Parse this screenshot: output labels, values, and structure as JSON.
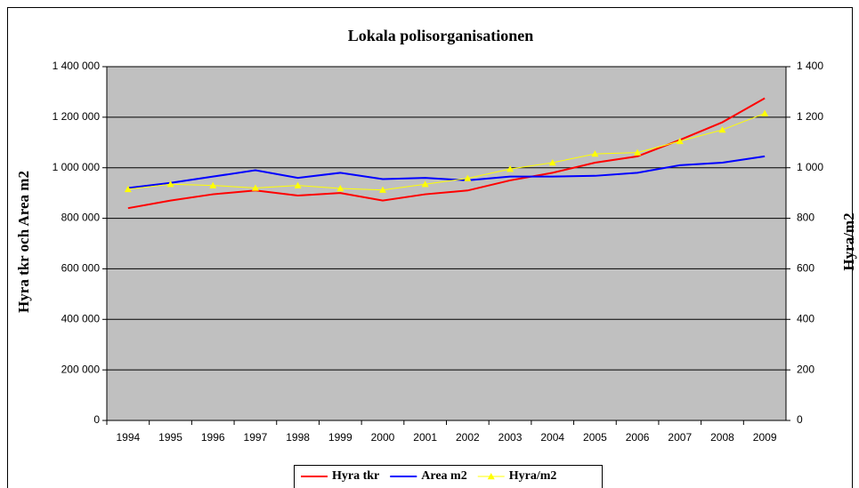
{
  "chart_data": {
    "type": "line",
    "title": "Lokala polisorganisationen",
    "y_label": "Hyra tkr och Area m2",
    "y2_label": "Hyra/m2",
    "categories": [
      "1994",
      "1995",
      "1996",
      "1997",
      "1998",
      "1999",
      "2000",
      "2001",
      "2002",
      "2003",
      "2004",
      "2005",
      "2006",
      "2007",
      "2008",
      "2009"
    ],
    "series": [
      {
        "name": "Hyra tkr",
        "color": "#ff0000",
        "values": [
          840000,
          870000,
          895000,
          910000,
          890000,
          900000,
          870000,
          895000,
          910000,
          950000,
          980000,
          1020000,
          1045000,
          1110000,
          1180000,
          1275000
        ]
      },
      {
        "name": "Area m2",
        "color": "#0000ff",
        "values": [
          920000,
          940000,
          965000,
          990000,
          960000,
          980000,
          955000,
          960000,
          950000,
          965000,
          965000,
          968000,
          980000,
          1010000,
          1020000,
          1045000
        ]
      },
      {
        "name": "Hyra/m2",
        "color": "#ffff00",
        "axis": "y2",
        "marker": "triangle",
        "values": [
          915,
          935,
          930,
          920,
          930,
          918,
          912,
          935,
          958,
          995,
          1020,
          1055,
          1060,
          1105,
          1150,
          1215
        ]
      }
    ],
    "ylim": [
      0,
      1400000
    ],
    "yticks": [
      0,
      {
        "value": 200000,
        "label": "200 000"
      },
      {
        "value": 400000,
        "label": "400 000"
      },
      {
        "value": 600000,
        "label": "600 000"
      },
      {
        "value": 800000,
        "label": "800 000"
      },
      {
        "value": 1000000,
        "label": "1 000 000"
      },
      {
        "value": 1200000,
        "label": "1 200 000"
      },
      {
        "value": 1400000,
        "label": "1 400 000"
      }
    ],
    "y2lim": [
      0,
      1400
    ],
    "y2ticks": [
      0,
      200,
      400,
      600,
      800,
      {
        "value": 1000,
        "label": "1 000"
      },
      {
        "value": 1200,
        "label": "1 200"
      },
      {
        "value": 1400,
        "label": "1 400"
      }
    ],
    "grid": true,
    "legend": "bottom",
    "background": "#c0c0c0"
  }
}
